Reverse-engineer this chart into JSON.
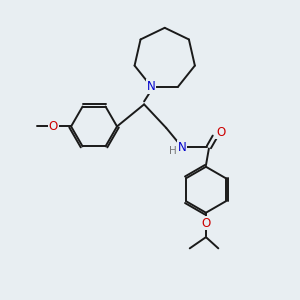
{
  "background_color": "#e8eef2",
  "bond_color": "#1a1a1a",
  "N_color": "#0000cc",
  "O_color": "#cc0000",
  "H_color": "#777777",
  "bond_width": 1.4,
  "figsize": [
    3.0,
    3.0
  ],
  "dpi": 100,
  "xlim": [
    0,
    10
  ],
  "ylim": [
    0,
    10
  ]
}
